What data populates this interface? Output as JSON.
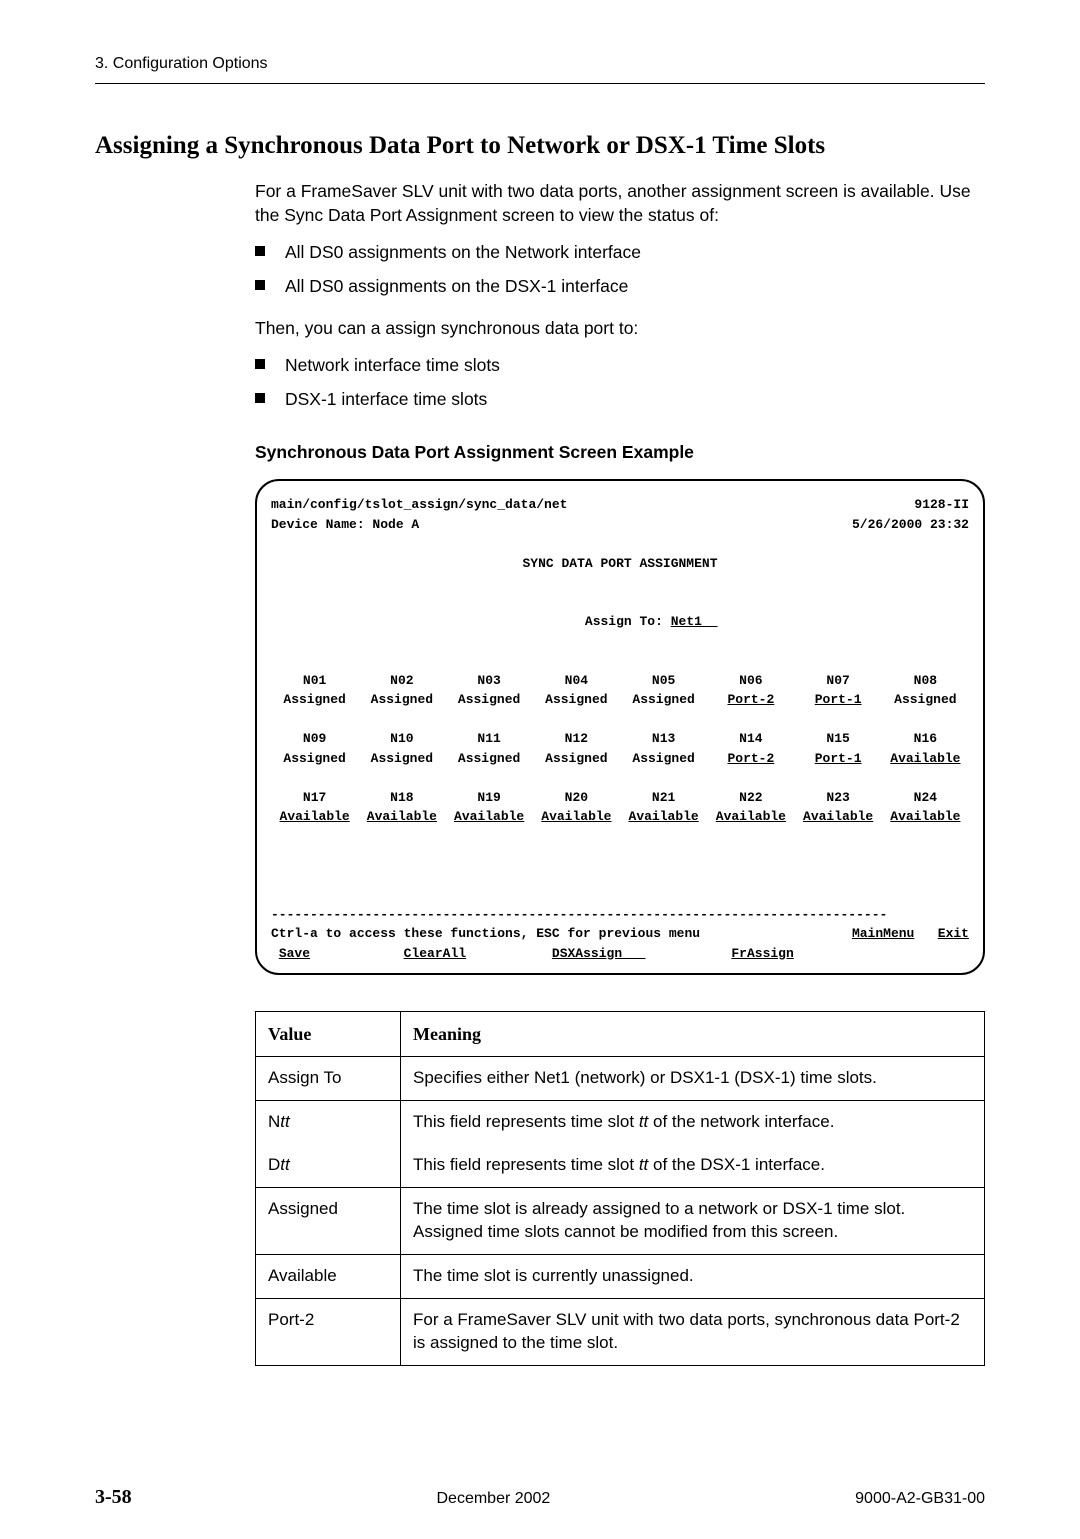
{
  "header": {
    "chapter": "3. Configuration Options"
  },
  "heading": "Assigning a Synchronous Data Port to Network or DSX-1 Time Slots",
  "intro": "For a FrameSaver SLV unit with two data ports, another assignment screen is available. Use the Sync Data Port Assignment screen to view the status of:",
  "bullets1": [
    "All DS0 assignments on the Network interface",
    "All DS0 assignments on the DSX-1 interface"
  ],
  "mid": "Then, you can a assign synchronous data port to:",
  "bullets2": [
    "Network interface time slots",
    "DSX-1 interface time slots"
  ],
  "subheading": "Synchronous Data Port Assignment Screen Example",
  "screen": {
    "path": "main/config/tslot_assign/sync_data/net",
    "model": "9128-II",
    "device_name_label": "Device Name: Node A",
    "datetime": "5/26/2000 23:32",
    "title": "SYNC DATA PORT ASSIGNMENT",
    "assign_label": "Assign To: ",
    "assign_value": "Net1  ",
    "rows": [
      {
        "header": [
          "N01",
          "N02",
          "N03",
          "N04",
          "N05",
          "N06",
          "N07",
          "N08"
        ],
        "values": [
          {
            "t": "Assigned",
            "u": false
          },
          {
            "t": "Assigned",
            "u": false
          },
          {
            "t": "Assigned",
            "u": false
          },
          {
            "t": "Assigned",
            "u": false
          },
          {
            "t": "Assigned",
            "u": false
          },
          {
            "t": "Port-2",
            "u": true
          },
          {
            "t": "Port-1",
            "u": true
          },
          {
            "t": "Assigned",
            "u": false
          }
        ]
      },
      {
        "header": [
          "N09",
          "N10",
          "N11",
          "N12",
          "N13",
          "N14",
          "N15",
          "N16"
        ],
        "values": [
          {
            "t": "Assigned",
            "u": false
          },
          {
            "t": "Assigned",
            "u": false
          },
          {
            "t": "Assigned",
            "u": false
          },
          {
            "t": "Assigned",
            "u": false
          },
          {
            "t": "Assigned",
            "u": false
          },
          {
            "t": "Port-2",
            "u": true
          },
          {
            "t": "Port-1",
            "u": true
          },
          {
            "t": "Available",
            "u": true
          }
        ]
      },
      {
        "header": [
          "N17",
          "N18",
          "N19",
          "N20",
          "N21",
          "N22",
          "N23",
          "N24"
        ],
        "values": [
          {
            "t": "Available",
            "u": true
          },
          {
            "t": "Available",
            "u": true
          },
          {
            "t": "Available",
            "u": true
          },
          {
            "t": "Available",
            "u": true
          },
          {
            "t": "Available",
            "u": true
          },
          {
            "t": "Available",
            "u": true
          },
          {
            "t": "Available",
            "u": true
          },
          {
            "t": "Available",
            "u": true
          }
        ]
      }
    ],
    "divider": "-------------------------------------------------------------------------------",
    "help_line_left": "Ctrl-a to access these functions, ESC for previous menu",
    "mainmenu": "MainMenu",
    "exit": "Exit",
    "save": "Save",
    "clearall": "ClearAll",
    "dsxassign": "DSXAssign   ",
    "frassign": "FrAssign"
  },
  "table": {
    "headers": [
      "Value",
      "Meaning"
    ],
    "rows": [
      {
        "v": "Assign To",
        "m": "Specifies either Net1 (network) or DSX1-1 (DSX-1) time slots."
      },
      {
        "v_pre": "N",
        "v_it": "tt",
        "m_parts": [
          "This field represents time slot ",
          "tt",
          " of the network interface."
        ],
        "group": "mid-top"
      },
      {
        "v_pre": "D",
        "v_it": "tt",
        "m_parts": [
          "This field represents time slot ",
          "tt",
          " of the DSX-1 interface."
        ],
        "group": "mid-bot"
      },
      {
        "v": "Assigned",
        "m": "The time slot is already assigned to a network or DSX-1 time slot. Assigned time slots cannot be modified from this screen."
      },
      {
        "v": "Available",
        "m": "The time slot is currently unassigned."
      },
      {
        "v": "Port-2",
        "m": "For a FrameSaver SLV unit with two data ports, synchronous data Port-2 is assigned to the time slot."
      }
    ]
  },
  "footer": {
    "page": "3-58",
    "date": "December 2002",
    "doc": "9000-A2-GB31-00"
  }
}
